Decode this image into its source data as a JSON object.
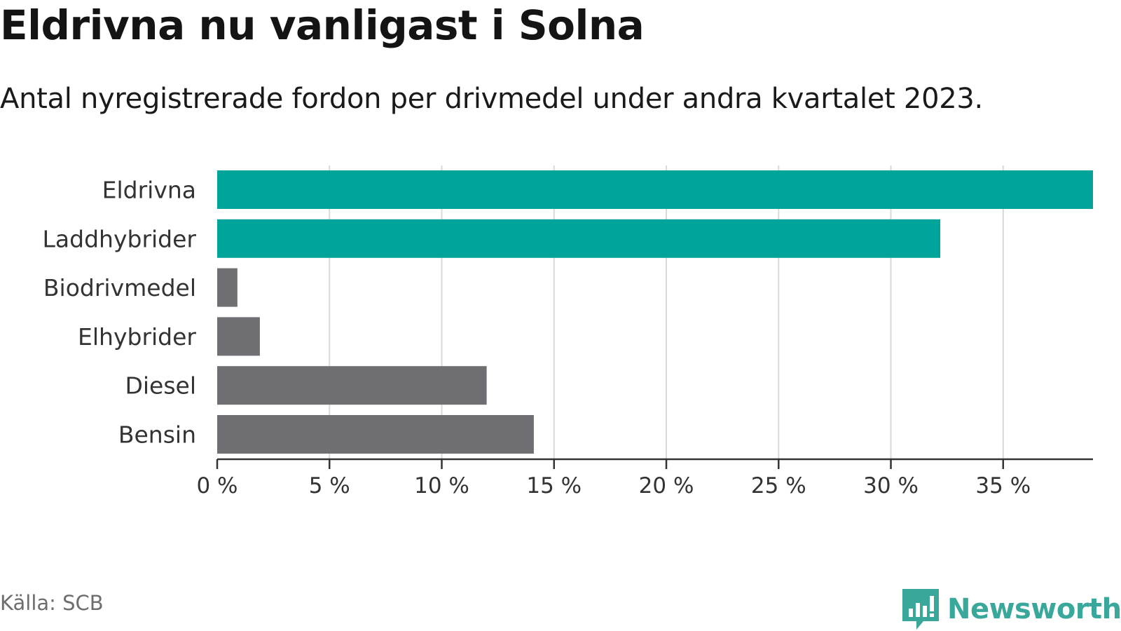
{
  "header": {
    "title": "Eldrivna nu vanligast i Solna",
    "subtitle": "Antal nyregistrerade fordon per drivmedel under andra kvartalet 2023."
  },
  "footer": {
    "source": "Källa: SCB",
    "brand": "Newsworthy",
    "brand_icon": "bar-chart-speech-bubble-icon"
  },
  "colors": {
    "highlight": "#00a49a",
    "default": "#6f6e73",
    "grid": "#d9d9d9",
    "axis": "#333333",
    "brand": "#3aa79b"
  },
  "chart_data": {
    "type": "bar",
    "orientation": "horizontal",
    "categories": [
      "Eldrivna",
      "Laddhybrider",
      "Biodrivmedel",
      "Elhybrider",
      "Diesel",
      "Bensin"
    ],
    "values": [
      39.0,
      32.2,
      0.9,
      1.9,
      12.0,
      14.1
    ],
    "highlighted": [
      true,
      true,
      false,
      false,
      false,
      false
    ],
    "xlim": [
      0,
      39
    ],
    "xticks": [
      0,
      5,
      10,
      15,
      20,
      25,
      30,
      35
    ],
    "tick_labels": [
      "0 %",
      "5 %",
      "10 %",
      "15 %",
      "20 %",
      "25 %",
      "30 %",
      "35 %"
    ],
    "grid": true,
    "legend": false
  }
}
